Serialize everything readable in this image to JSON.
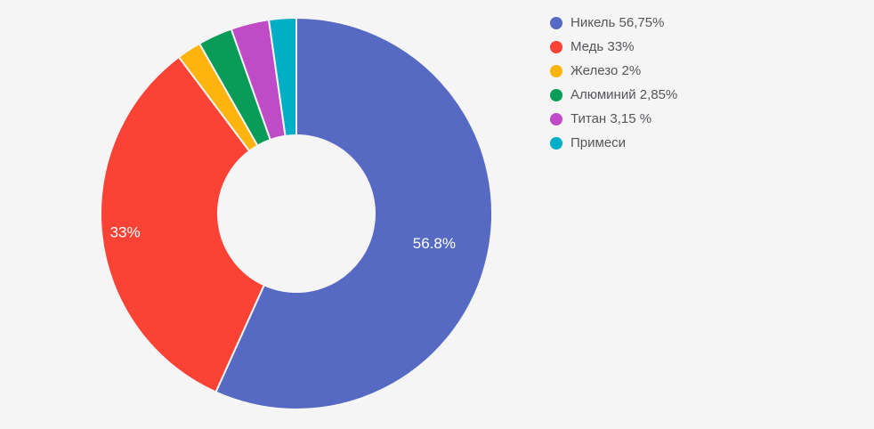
{
  "background_color": "#f5f5f6",
  "chart_data": {
    "type": "pie",
    "subtype": "donut",
    "title": "",
    "legend_position": "right",
    "hole_ratio": 0.4,
    "start_angle_deg": 0,
    "direction": "clockwise",
    "grid": false,
    "slice_label_color": "#ffffff",
    "legend_text_color": "#55565a",
    "slices": [
      {
        "name": "nickel",
        "legend_label": "Никель 56,75%",
        "value": 56.75,
        "color": "#5669c3",
        "slice_label": "56.8%",
        "label_r_frac": 0.72
      },
      {
        "name": "copper",
        "legend_label": "Медь 33%",
        "value": 33,
        "color": "#fa4235",
        "slice_label": "33%",
        "label_r_frac": 0.88
      },
      {
        "name": "iron",
        "legend_label": "Железо 2%",
        "value": 2,
        "color": "#ffb30d",
        "slice_label": "",
        "label_r_frac": 0.75
      },
      {
        "name": "aluminum",
        "legend_label": "Алюминий 2,85%",
        "value": 2.85,
        "color": "#089c58",
        "slice_label": "",
        "label_r_frac": 0.75
      },
      {
        "name": "titanium",
        "legend_label": "Титан 3,15 %",
        "value": 3.15,
        "color": "#c04bc6",
        "slice_label": "",
        "label_r_frac": 0.75
      },
      {
        "name": "impurities",
        "legend_label": "Примеси",
        "value": 2.25,
        "color": "#00aec5",
        "slice_label": "",
        "label_r_frac": 0.75
      }
    ]
  }
}
